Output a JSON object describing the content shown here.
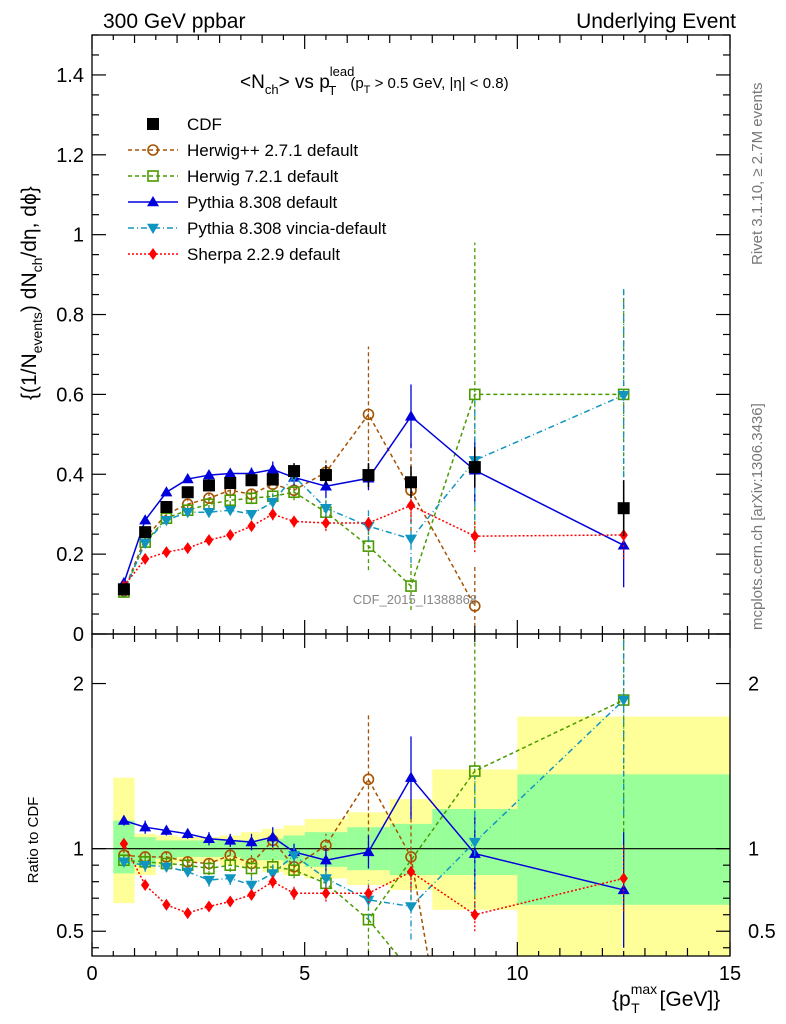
{
  "header": {
    "left": "300 GeV ppbar",
    "right": "Underlying Event",
    "side_top": "Rivet 3.1.10, ≥ 2.7M events",
    "side_bottom": "mcplots.cern.ch [arXiv:1306.3436]"
  },
  "watermark": "CDF_2015_I1388868",
  "title_text": {
    "lhs": "<N",
    "lhs_sub": "ch",
    "mid": "> vs p",
    "sup": "lead",
    "sub": "T",
    "cuts": "(p",
    "cuts_sub": "T",
    "cuts_rest": " > 0.5 GeV, |η| < 0.8)"
  },
  "ylabel_text": {
    "a": "{(1/N",
    "a_sub": "events",
    "b": ") dN",
    "b_sub": "ch",
    "c": "/dη, dϕ}"
  },
  "ratio_ylabel": "Ratio to CDF",
  "xlabel_text": {
    "a": "{p",
    "sup": "max",
    "sub": "T",
    "b": " [GeV]}"
  },
  "colors": {
    "CDF": "#000000",
    "Herwig++ 2.7.1 default": "#a65200",
    "Herwig 7.2.1 default": "#4a9a00",
    "Pythia 8.308 default": "#0000dd",
    "Pythia 8.308 vincia-default": "#1095c0",
    "Sherpa 2.2.9 default": "#ff0000",
    "band_outer": "#ffff99",
    "band_inner": "#99ff99"
  },
  "chart_data": {
    "type": "line",
    "x": [
      0.75,
      1.25,
      1.75,
      2.25,
      2.75,
      3.25,
      3.75,
      4.25,
      4.75,
      5.5,
      6.5,
      7.5,
      9.0,
      12.5
    ],
    "xlim": [
      0,
      15
    ],
    "xticks": [
      0,
      5,
      10,
      15
    ],
    "main": {
      "ylim": [
        0,
        1.5
      ],
      "yticks": [
        0.2,
        0.4,
        0.6,
        0.8,
        1,
        1.2,
        1.4
      ],
      "yticklabels": [
        "0.2",
        "0.4",
        "0.6",
        "0.8",
        "1",
        "1.2",
        "1.4"
      ],
      "partial_tick": "0"
    },
    "ratio": {
      "ylim": [
        0.35,
        2.3
      ],
      "yticks": [
        0.5,
        1,
        2
      ],
      "yticklabels": [
        "0.5",
        "1",
        "2"
      ]
    },
    "data": {
      "name": "CDF",
      "values": [
        0.112,
        0.255,
        0.318,
        0.355,
        0.372,
        0.378,
        0.385,
        0.387,
        0.408,
        0.398,
        0.398,
        0.38,
        0.418,
        0.315
      ],
      "errors": [
        0.005,
        0.008,
        0.008,
        0.009,
        0.01,
        0.011,
        0.012,
        0.015,
        0.02,
        0.025,
        0.03,
        0.04,
        0.05,
        0.07
      ]
    },
    "bins": {
      "edges": [
        0.5,
        1.0,
        1.5,
        2.0,
        2.5,
        3.0,
        3.5,
        4.0,
        4.5,
        5.0,
        6.0,
        7.0,
        8.0,
        10.0,
        15.0
      ],
      "band_inner": [
        [
          0.85,
          1.17
        ],
        [
          0.9,
          1.07
        ],
        [
          0.94,
          1.05
        ],
        [
          0.95,
          1.05
        ],
        [
          0.95,
          1.05
        ],
        [
          0.95,
          1.05
        ],
        [
          0.93,
          1.05
        ],
        [
          0.93,
          1.06
        ],
        [
          0.91,
          1.08
        ],
        [
          0.89,
          1.1
        ],
        [
          0.87,
          1.13
        ],
        [
          0.84,
          1.15
        ],
        [
          0.84,
          1.24
        ],
        [
          0.66,
          1.45
        ]
      ],
      "band_outer": [
        [
          0.67,
          1.43
        ],
        [
          0.84,
          1.09
        ],
        [
          0.9,
          1.08
        ],
        [
          0.92,
          1.07
        ],
        [
          0.92,
          1.07
        ],
        [
          0.9,
          1.08
        ],
        [
          0.88,
          1.1
        ],
        [
          0.86,
          1.12
        ],
        [
          0.84,
          1.14
        ],
        [
          0.82,
          1.18
        ],
        [
          0.78,
          1.22
        ],
        [
          0.75,
          1.3
        ],
        [
          0.63,
          1.48
        ],
        [
          0.35,
          1.8
        ]
      ]
    },
    "series": [
      {
        "name": "Herwig++ 2.7.1 default",
        "marker": "circle-open",
        "dash": "4,3",
        "values": [
          0.108,
          0.24,
          0.3,
          0.325,
          0.34,
          0.36,
          0.35,
          0.375,
          0.36,
          0.405,
          0.55,
          0.36,
          0.07,
          null
        ],
        "errors": [
          0.004,
          0.01,
          0.01,
          0.01,
          0.012,
          0.012,
          0.015,
          0.02,
          0.02,
          0.03,
          0.17,
          0.12,
          0.1,
          null
        ],
        "ratio": [
          0.96,
          0.95,
          0.95,
          0.92,
          0.91,
          0.96,
          0.91,
          1.05,
          0.89,
          1.02,
          1.42,
          0.95,
          null,
          null
        ],
        "ratio_errors": [
          0.03,
          0.04,
          0.03,
          0.03,
          0.04,
          0.04,
          0.05,
          0.06,
          0.05,
          0.07,
          0.4,
          0.3,
          null,
          null
        ],
        "ratio_offscale": [
          null,
          null,
          null,
          null,
          null,
          null,
          null,
          null,
          null,
          null,
          null,
          [
            7.5,
            0.95,
            7.9,
            0.35
          ],
          null,
          null
        ]
      },
      {
        "name": "Herwig 7.2.1 default",
        "marker": "square-open",
        "dash": "4,3",
        "values": [
          0.105,
          0.23,
          0.29,
          0.31,
          0.325,
          0.335,
          0.34,
          0.345,
          0.355,
          0.305,
          0.22,
          0.12,
          0.6,
          0.6
        ],
        "errors": [
          0.004,
          0.01,
          0.01,
          0.01,
          0.012,
          0.012,
          0.015,
          0.02,
          0.02,
          0.03,
          0.06,
          0.06,
          0.38,
          0.26
        ],
        "ratio": [
          0.93,
          0.92,
          0.91,
          0.9,
          0.88,
          0.9,
          0.88,
          0.89,
          0.87,
          0.79,
          0.57,
          null,
          1.47,
          1.9
        ],
        "ratio_errors": [
          0.03,
          0.04,
          0.03,
          0.03,
          0.04,
          0.04,
          0.05,
          0.06,
          0.05,
          0.07,
          0.2,
          null,
          0.9,
          0.8
        ],
        "ratio_offscale": [
          null,
          null,
          null,
          null,
          null,
          null,
          null,
          null,
          null,
          null,
          [
            6.5,
            0.57,
            7.2,
            0.35
          ],
          null,
          null,
          null
        ]
      },
      {
        "name": "Pythia 8.308 default",
        "marker": "triangle-up",
        "dash": "",
        "values": [
          0.128,
          0.285,
          0.355,
          0.388,
          0.398,
          0.402,
          0.402,
          0.412,
          0.392,
          0.37,
          0.39,
          0.545,
          0.41,
          0.222
        ],
        "errors": [
          0.004,
          0.01,
          0.01,
          0.01,
          0.012,
          0.012,
          0.015,
          0.02,
          0.02,
          0.03,
          0.03,
          0.08,
          0.08,
          0.105
        ],
        "ratio": [
          1.17,
          1.13,
          1.11,
          1.09,
          1.06,
          1.05,
          1.04,
          1.07,
          0.98,
          0.93,
          0.98,
          1.43,
          0.97,
          0.75
        ],
        "ratio_errors": [
          0.03,
          0.04,
          0.03,
          0.03,
          0.04,
          0.04,
          0.05,
          0.06,
          0.05,
          0.07,
          0.1,
          0.25,
          0.22,
          0.35
        ],
        "ratio_offscale": []
      },
      {
        "name": "Pythia 8.308 vincia-default",
        "marker": "triangle-down",
        "dash": "6,3,1,3",
        "values": [
          0.108,
          0.228,
          0.285,
          0.305,
          0.305,
          0.31,
          0.3,
          0.33,
          0.395,
          0.315,
          0.27,
          0.238,
          0.435,
          0.598
        ],
        "errors": [
          0.004,
          0.01,
          0.01,
          0.01,
          0.012,
          0.012,
          0.015,
          0.02,
          0.02,
          0.03,
          0.04,
          0.06,
          0.15,
          0.27
        ],
        "ratio": [
          0.92,
          0.9,
          0.89,
          0.86,
          0.81,
          0.82,
          0.78,
          0.85,
          0.96,
          0.82,
          0.69,
          0.65,
          1.04,
          1.9
        ],
        "ratio_errors": [
          0.03,
          0.04,
          0.03,
          0.03,
          0.04,
          0.04,
          0.05,
          0.06,
          0.05,
          0.07,
          0.12,
          0.2,
          0.4,
          0.7
        ],
        "ratio_offscale": []
      },
      {
        "name": "Sherpa 2.2.9 default",
        "marker": "diamond",
        "dash": "2,2",
        "values": [
          0.12,
          0.188,
          0.205,
          0.215,
          0.235,
          0.248,
          0.27,
          0.3,
          0.282,
          0.278,
          0.278,
          0.322,
          0.245,
          0.248
        ],
        "errors": [
          0.004,
          0.008,
          0.008,
          0.008,
          0.01,
          0.01,
          0.012,
          0.015,
          0.015,
          0.02,
          0.02,
          0.04,
          0.04,
          0.06
        ],
        "ratio": [
          1.03,
          0.78,
          0.66,
          0.61,
          0.65,
          0.68,
          0.72,
          0.8,
          0.73,
          0.73,
          0.73,
          0.86,
          0.6,
          0.82
        ],
        "ratio_errors": [
          0.02,
          0.03,
          0.02,
          0.02,
          0.02,
          0.02,
          0.03,
          0.04,
          0.04,
          0.05,
          0.06,
          0.1,
          0.1,
          0.2
        ],
        "ratio_offscale": []
      }
    ]
  }
}
